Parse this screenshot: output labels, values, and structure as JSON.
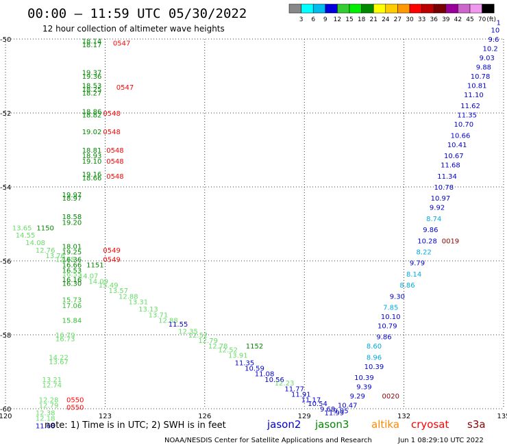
{
  "header": {
    "title": "00:00 — 11:59 UTC 05/30/2022",
    "subtitle": "12 hour collection of altimeter wave heights"
  },
  "color_scale": {
    "colors": [
      "#888888",
      "#00ffff",
      "#00bbee",
      "#0000dd",
      "#33cc33",
      "#00ee00",
      "#008800",
      "#ffff00",
      "#ffcc00",
      "#ff9900",
      "#ff0000",
      "#bb0000",
      "#770000",
      "#990099",
      "#cc66cc",
      "#ee99ee",
      "#000000"
    ],
    "labels": [
      "3",
      "6",
      "9",
      "12",
      "15",
      "18",
      "21",
      "24",
      "27",
      "30",
      "33",
      "36",
      "39",
      "42",
      "45",
      "70",
      "(ft)"
    ]
  },
  "chart_data": {
    "type": "scatter",
    "title": "12 hour collection of altimeter wave heights",
    "x_ticks": [
      "120",
      "123",
      "126",
      "129",
      "132",
      "135"
    ],
    "y_ticks": [
      "-50",
      "-52",
      "-54",
      "-56",
      "-58",
      "-60"
    ],
    "xlim": [
      120,
      135
    ],
    "ylim": [
      -60,
      -50
    ],
    "grid": true,
    "series_colors": {
      "jason2": "#0000cc",
      "jason3": "#008800",
      "altika": "#ff8800",
      "cryosat": "#ff0000",
      "s3a": "#880000"
    },
    "labels": [
      {
        "x": 122.6,
        "y": -50.05,
        "text": "18.14",
        "color": "#008800"
      },
      {
        "x": 122.6,
        "y": -50.15,
        "text": "18.17",
        "color": "#008800"
      },
      {
        "x": 123.5,
        "y": -50.1,
        "text": "0547",
        "color": "#ff0000",
        "big": true
      },
      {
        "x": 122.6,
        "y": -50.9,
        "text": "19.37",
        "color": "#008800"
      },
      {
        "x": 122.6,
        "y": -51.0,
        "text": "19.36",
        "color": "#008800"
      },
      {
        "x": 122.6,
        "y": -51.25,
        "text": "18.53",
        "color": "#008800"
      },
      {
        "x": 122.6,
        "y": -51.35,
        "text": "18.25",
        "color": "#008800"
      },
      {
        "x": 122.6,
        "y": -51.45,
        "text": "18.27",
        "color": "#008800"
      },
      {
        "x": 123.6,
        "y": -51.3,
        "text": "0547",
        "color": "#ff0000",
        "big": true
      },
      {
        "x": 122.6,
        "y": -51.95,
        "text": "18.86",
        "color": "#008800"
      },
      {
        "x": 122.6,
        "y": -52.05,
        "text": "18.82",
        "color": "#008800"
      },
      {
        "x": 123.2,
        "y": -52.0,
        "text": "0548",
        "color": "#ff0000",
        "big": true
      },
      {
        "x": 122.6,
        "y": -52.5,
        "text": "19.02",
        "color": "#008800"
      },
      {
        "x": 123.2,
        "y": -52.5,
        "text": "0548",
        "color": "#ff0000",
        "big": true
      },
      {
        "x": 122.6,
        "y": -53.0,
        "text": "18.81",
        "color": "#008800"
      },
      {
        "x": 122.6,
        "y": -53.15,
        "text": "18.93",
        "color": "#008800"
      },
      {
        "x": 122.6,
        "y": -53.3,
        "text": "19.10",
        "color": "#008800"
      },
      {
        "x": 123.3,
        "y": -53.0,
        "text": "0548",
        "color": "#ff0000",
        "big": true
      },
      {
        "x": 123.3,
        "y": -53.3,
        "text": "0548",
        "color": "#ff0000",
        "big": true
      },
      {
        "x": 122.6,
        "y": -53.65,
        "text": "19.16",
        "color": "#008800"
      },
      {
        "x": 122.6,
        "y": -53.75,
        "text": "18.66",
        "color": "#008800"
      },
      {
        "x": 123.3,
        "y": -53.7,
        "text": "0548",
        "color": "#ff0000",
        "big": true
      },
      {
        "x": 122.0,
        "y": -54.2,
        "text": "19.97",
        "color": "#008800"
      },
      {
        "x": 122.0,
        "y": -54.3,
        "text": "18.97",
        "color": "#008800"
      },
      {
        "x": 122.0,
        "y": -54.8,
        "text": "18.58",
        "color": "#008800"
      },
      {
        "x": 122.0,
        "y": -54.95,
        "text": "19.20",
        "color": "#008800"
      },
      {
        "x": 120.5,
        "y": -55.1,
        "text": "13.65",
        "color": "#66dd66"
      },
      {
        "x": 121.2,
        "y": -55.1,
        "text": "1150",
        "color": "#008800",
        "big": true
      },
      {
        "x": 120.6,
        "y": -55.3,
        "text": "14.55",
        "color": "#66dd66"
      },
      {
        "x": 120.9,
        "y": -55.5,
        "text": "14.08",
        "color": "#66dd66"
      },
      {
        "x": 121.2,
        "y": -55.7,
        "text": "12.76",
        "color": "#66dd66"
      },
      {
        "x": 121.5,
        "y": -55.85,
        "text": "13.76",
        "color": "#66dd66"
      },
      {
        "x": 121.8,
        "y": -55.95,
        "text": "12.75",
        "color": "#66dd66"
      },
      {
        "x": 122.0,
        "y": -55.6,
        "text": "18.01",
        "color": "#008800"
      },
      {
        "x": 122.0,
        "y": -55.75,
        "text": "19.25",
        "color": "#008800"
      },
      {
        "x": 123.2,
        "y": -55.7,
        "text": "0549",
        "color": "#ff0000",
        "big": true
      },
      {
        "x": 122.0,
        "y": -55.95,
        "text": "16.36",
        "color": "#008800"
      },
      {
        "x": 123.2,
        "y": -55.95,
        "text": "0549",
        "color": "#ff0000",
        "big": true
      },
      {
        "x": 122.0,
        "y": -56.1,
        "text": "16.66",
        "color": "#008800"
      },
      {
        "x": 122.0,
        "y": -56.25,
        "text": "16.53",
        "color": "#008800"
      },
      {
        "x": 122.7,
        "y": -56.1,
        "text": "1151",
        "color": "#008800",
        "big": true
      },
      {
        "x": 122.0,
        "y": -56.35,
        "text": "16.55",
        "color": "#66dd66"
      },
      {
        "x": 122.5,
        "y": -56.4,
        "text": "14.07",
        "color": "#66dd66"
      },
      {
        "x": 122.8,
        "y": -56.55,
        "text": "14.09",
        "color": "#66dd66"
      },
      {
        "x": 122.0,
        "y": -56.5,
        "text": "16.16",
        "color": "#008800"
      },
      {
        "x": 122.0,
        "y": -56.6,
        "text": "16.30",
        "color": "#008800"
      },
      {
        "x": 123.1,
        "y": -56.65,
        "text": "15.49",
        "color": "#66dd66"
      },
      {
        "x": 123.4,
        "y": -56.8,
        "text": "13.57",
        "color": "#66dd66"
      },
      {
        "x": 123.7,
        "y": -56.95,
        "text": "12.88",
        "color": "#66dd66"
      },
      {
        "x": 124.0,
        "y": -57.1,
        "text": "13.31",
        "color": "#66dd66"
      },
      {
        "x": 124.3,
        "y": -57.3,
        "text": "13.13",
        "color": "#66dd66"
      },
      {
        "x": 124.6,
        "y": -57.45,
        "text": "13.71",
        "color": "#66dd66"
      },
      {
        "x": 124.9,
        "y": -57.6,
        "text": "12.88",
        "color": "#66dd66"
      },
      {
        "x": 125.2,
        "y": -57.7,
        "text": "11.55",
        "color": "#0000cc"
      },
      {
        "x": 125.5,
        "y": -57.9,
        "text": "12.35",
        "color": "#66dd66"
      },
      {
        "x": 125.8,
        "y": -58.0,
        "text": "12.52",
        "color": "#66dd66"
      },
      {
        "x": 126.1,
        "y": -58.15,
        "text": "12.79",
        "color": "#66dd66"
      },
      {
        "x": 126.4,
        "y": -58.3,
        "text": "12.78",
        "color": "#66dd66"
      },
      {
        "x": 126.7,
        "y": -58.4,
        "text": "12.52",
        "color": "#66dd66"
      },
      {
        "x": 127.0,
        "y": -58.55,
        "text": "13.91",
        "color": "#66dd66"
      },
      {
        "x": 127.5,
        "y": -58.3,
        "text": "1152",
        "color": "#008800",
        "big": true
      },
      {
        "x": 127.2,
        "y": -58.75,
        "text": "11.35",
        "color": "#0000cc"
      },
      {
        "x": 127.5,
        "y": -58.9,
        "text": "10.59",
        "color": "#0000cc"
      },
      {
        "x": 127.8,
        "y": -59.05,
        "text": "11.08",
        "color": "#0000cc"
      },
      {
        "x": 128.1,
        "y": -59.2,
        "text": "10.56",
        "color": "#0000cc"
      },
      {
        "x": 128.4,
        "y": -59.3,
        "text": "12.23",
        "color": "#66dd66"
      },
      {
        "x": 128.7,
        "y": -59.45,
        "text": "11.77",
        "color": "#0000cc"
      },
      {
        "x": 128.9,
        "y": -59.6,
        "text": "11.91",
        "color": "#0000cc"
      },
      {
        "x": 129.2,
        "y": -59.75,
        "text": "11.17",
        "color": "#0000cc"
      },
      {
        "x": 129.4,
        "y": -59.85,
        "text": "10.54",
        "color": "#0000cc"
      },
      {
        "x": 129.7,
        "y": -60.0,
        "text": "9.68",
        "color": "#0000cc"
      },
      {
        "x": 129.9,
        "y": -60.1,
        "text": "11.99",
        "color": "#0000cc"
      },
      {
        "x": 130.1,
        "y": -60.05,
        "text": "9.95",
        "color": "#0000cc"
      },
      {
        "x": 122.0,
        "y": -57.05,
        "text": "15.73",
        "color": "#33bb33"
      },
      {
        "x": 122.0,
        "y": -57.2,
        "text": "17.06",
        "color": "#33bb33"
      },
      {
        "x": 122.0,
        "y": -57.6,
        "text": "15.84",
        "color": "#33bb33"
      },
      {
        "x": 121.8,
        "y": -58.0,
        "text": "16.79",
        "color": "#66dd66"
      },
      {
        "x": 121.8,
        "y": -58.1,
        "text": "16.73",
        "color": "#66dd66"
      },
      {
        "x": 121.6,
        "y": -58.6,
        "text": "14.22",
        "color": "#66dd66"
      },
      {
        "x": 121.6,
        "y": -58.72,
        "text": "13.67",
        "color": "#66dd66"
      },
      {
        "x": 121.4,
        "y": -59.2,
        "text": "13.21",
        "color": "#66dd66"
      },
      {
        "x": 121.4,
        "y": -59.35,
        "text": "12.74",
        "color": "#66dd66"
      },
      {
        "x": 121.3,
        "y": -59.75,
        "text": "12.28",
        "color": "#66dd66"
      },
      {
        "x": 122.1,
        "y": -59.75,
        "text": "0550",
        "color": "#ff0000",
        "big": true
      },
      {
        "x": 121.3,
        "y": -59.9,
        "text": "12.79",
        "color": "#66dd66"
      },
      {
        "x": 122.1,
        "y": -59.95,
        "text": "0550",
        "color": "#ff0000",
        "big": true
      },
      {
        "x": 121.2,
        "y": -60.1,
        "text": "12.38",
        "color": "#66dd66"
      },
      {
        "x": 121.2,
        "y": -60.25,
        "text": "12.18",
        "color": "#66dd66"
      },
      {
        "x": 121.2,
        "y": -60.45,
        "text": "11.68",
        "color": "#0000cc"
      },
      {
        "x": 130.3,
        "y": -59.9,
        "text": "10.47",
        "color": "#0000cc"
      },
      {
        "x": 130.6,
        "y": -59.65,
        "text": "9.29",
        "color": "#0000cc"
      },
      {
        "x": 131.6,
        "y": -59.65,
        "text": "0020",
        "color": "#880000",
        "big": true
      },
      {
        "x": 130.8,
        "y": -59.4,
        "text": "9.39",
        "color": "#0000cc"
      },
      {
        "x": 130.8,
        "y": -59.15,
        "text": "10.39",
        "color": "#0000cc"
      },
      {
        "x": 131.1,
        "y": -58.85,
        "text": "10.39",
        "color": "#0000cc"
      },
      {
        "x": 131.1,
        "y": -58.6,
        "text": "8.96",
        "color": "#00aadd"
      },
      {
        "x": 131.1,
        "y": -58.3,
        "text": "8.60",
        "color": "#00aadd"
      },
      {
        "x": 131.4,
        "y": -58.05,
        "text": "9.86",
        "color": "#0000cc"
      },
      {
        "x": 131.5,
        "y": -57.75,
        "text": "10.79",
        "color": "#0000cc"
      },
      {
        "x": 131.6,
        "y": -57.5,
        "text": "10.10",
        "color": "#0000cc"
      },
      {
        "x": 131.6,
        "y": -57.25,
        "text": "7.85",
        "color": "#00aadd"
      },
      {
        "x": 131.8,
        "y": -56.95,
        "text": "9.30",
        "color": "#0000cc"
      },
      {
        "x": 132.1,
        "y": -56.65,
        "text": "8.86",
        "color": "#00aadd"
      },
      {
        "x": 132.3,
        "y": -56.35,
        "text": "8.14",
        "color": "#00aadd"
      },
      {
        "x": 132.4,
        "y": -56.05,
        "text": "9.79",
        "color": "#0000cc"
      },
      {
        "x": 132.6,
        "y": -55.75,
        "text": "8.22",
        "color": "#00aadd"
      },
      {
        "x": 132.7,
        "y": -55.45,
        "text": "10.28",
        "color": "#0000cc"
      },
      {
        "x": 133.4,
        "y": -55.45,
        "text": "0019",
        "color": "#880000",
        "big": true
      },
      {
        "x": 132.8,
        "y": -55.15,
        "text": "9.86",
        "color": "#0000cc"
      },
      {
        "x": 132.9,
        "y": -54.85,
        "text": "8.74",
        "color": "#00aadd"
      },
      {
        "x": 133.0,
        "y": -54.55,
        "text": "9.92",
        "color": "#0000cc"
      },
      {
        "x": 133.1,
        "y": -54.3,
        "text": "10.97",
        "color": "#0000cc"
      },
      {
        "x": 133.2,
        "y": -54.0,
        "text": "10.78",
        "color": "#0000cc"
      },
      {
        "x": 133.3,
        "y": -53.7,
        "text": "11.34",
        "color": "#0000cc"
      },
      {
        "x": 133.4,
        "y": -53.4,
        "text": "11.68",
        "color": "#0000cc"
      },
      {
        "x": 133.5,
        "y": -53.15,
        "text": "10.67",
        "color": "#0000cc"
      },
      {
        "x": 133.6,
        "y": -52.85,
        "text": "10.41",
        "color": "#0000cc"
      },
      {
        "x": 133.7,
        "y": -52.6,
        "text": "10.66",
        "color": "#0000cc"
      },
      {
        "x": 133.8,
        "y": -52.3,
        "text": "10.70",
        "color": "#0000cc"
      },
      {
        "x": 133.9,
        "y": -52.05,
        "text": "11.35",
        "color": "#0000cc"
      },
      {
        "x": 134.0,
        "y": -51.8,
        "text": "11.62",
        "color": "#0000cc"
      },
      {
        "x": 134.1,
        "y": -51.5,
        "text": "11.10",
        "color": "#0000cc"
      },
      {
        "x": 134.2,
        "y": -51.25,
        "text": "10.81",
        "color": "#0000cc"
      },
      {
        "x": 134.3,
        "y": -51.0,
        "text": "10.78",
        "color": "#0000cc"
      },
      {
        "x": 134.4,
        "y": -50.75,
        "text": "9.88",
        "color": "#0000cc"
      },
      {
        "x": 134.5,
        "y": -50.5,
        "text": "9.03",
        "color": "#0000cc"
      },
      {
        "x": 134.6,
        "y": -50.25,
        "text": "10.2",
        "color": "#0000cc"
      },
      {
        "x": 134.7,
        "y": -50.0,
        "text": "9.6",
        "color": "#0000cc"
      },
      {
        "x": 134.75,
        "y": -49.75,
        "text": "10",
        "color": "#0000cc"
      },
      {
        "x": 134.85,
        "y": -49.55,
        "text": "1",
        "color": "#0000cc"
      }
    ]
  },
  "legend": {
    "note": "note: 1) Time is in UTC; 2) SWH is in feet",
    "missions": [
      {
        "name": "jason2",
        "color": "#0000cc"
      },
      {
        "name": "jason3",
        "color": "#008800"
      },
      {
        "name": "altika",
        "color": "#ff8800"
      },
      {
        "name": "cryosat",
        "color": "#ff0000"
      },
      {
        "name": "s3a",
        "color": "#880000"
      }
    ]
  },
  "footer": {
    "credit": "NOAA/NESDIS Center for Satellite Applications and Research",
    "timestamp": "Jun  1 08:29:10 UTC 2022"
  }
}
